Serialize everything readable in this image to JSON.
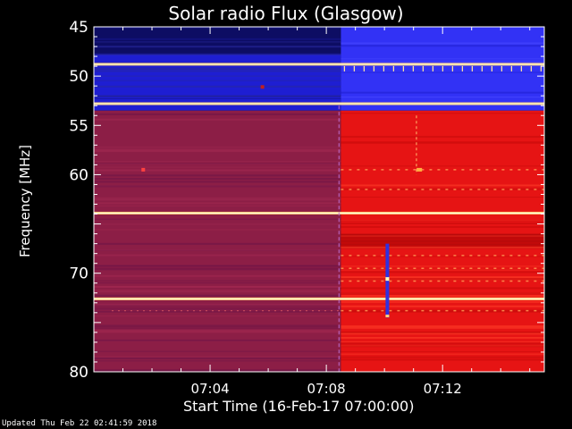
{
  "chart_data": {
    "type": "heatmap",
    "title": "Solar radio Flux (Glasgow)",
    "xlabel": "Start Time (16-Feb-17 07:00:00)",
    "ylabel": "Frequency [MHz]",
    "x_range_minutes": [
      0,
      15.5
    ],
    "x_ticks": [
      {
        "value": 4,
        "label": "07:04"
      },
      {
        "value": 8,
        "label": "07:08"
      },
      {
        "value": 12,
        "label": "07:12"
      }
    ],
    "y_range_mhz": [
      45,
      80
    ],
    "y_inverted": true,
    "y_ticks": [
      {
        "value": 45,
        "label": "45"
      },
      {
        "value": 50,
        "label": "50"
      },
      {
        "value": 55,
        "label": "55"
      },
      {
        "value": 60,
        "label": "60"
      },
      {
        "value": 65,
        "label": ""
      },
      {
        "value": 70,
        "label": "70"
      },
      {
        "value": 75,
        "label": ""
      },
      {
        "value": 80,
        "label": "80"
      }
    ],
    "transition_time_min": 8.5,
    "colors": {
      "background": "#000000",
      "high_band_before": "#1e1ed2",
      "high_band_after": "#3232f5",
      "low_band_before": "#8c1e46",
      "low_band_after": "#e61414",
      "interference_line": "#ffd280"
    },
    "interference_lines_mhz": [
      48.8,
      52.8,
      63.9,
      72.6
    ],
    "burst": {
      "time_min": 10.1,
      "freq_range_mhz": [
        67,
        74.5
      ]
    }
  },
  "footer": {
    "updated": "Updated Thu Feb 22 02:41:59 2018"
  }
}
